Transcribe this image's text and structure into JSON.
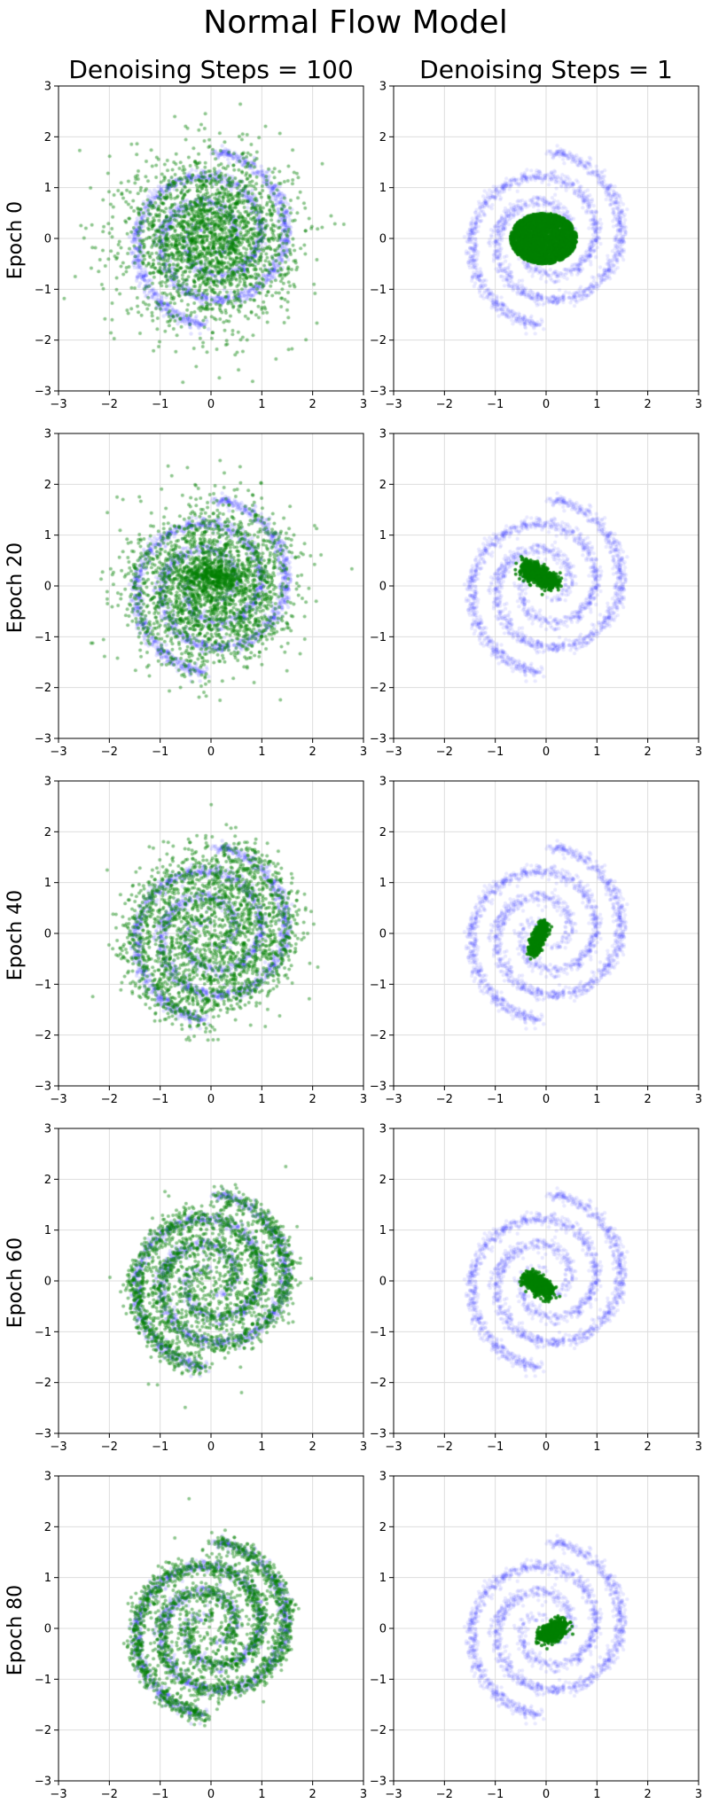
{
  "figure_title": "Normal Flow Model",
  "column_titles": [
    "Denoising Steps = 100",
    "Denoising Steps = 1"
  ],
  "row_labels": [
    "Epoch 0",
    "Epoch 20",
    "Epoch 40",
    "Epoch 60",
    "Epoch 80"
  ],
  "colors": {
    "target": "#0000ff",
    "generated": "#008000",
    "grid": "#dddddd"
  },
  "chart_data": {
    "type": "scatter",
    "grid": true,
    "xlim": [
      -3,
      3
    ],
    "ylim": [
      -3,
      3
    ],
    "xticks": [
      -3,
      -2,
      -1,
      0,
      1,
      2,
      3
    ],
    "yticks": [
      -3,
      -2,
      -1,
      0,
      1,
      2,
      3
    ],
    "target_distribution": {
      "shape": "two-arm spiral",
      "center": [
        0,
        0
      ],
      "outer_radius": 1.7,
      "point_count": 2000
    },
    "panels": [
      {
        "row": 0,
        "col": 0,
        "generated": {
          "kind": "gaussian",
          "mean": [
            0,
            0
          ],
          "std": 0.8,
          "n": 2200
        }
      },
      {
        "row": 0,
        "col": 1,
        "generated": {
          "kind": "blob",
          "center": [
            -0.05,
            0.0
          ],
          "radius": [
            0.65,
            0.5
          ],
          "n": 2600
        }
      },
      {
        "row": 1,
        "col": 0,
        "generated": {
          "kind": "gaussian+spiral",
          "mean": [
            0,
            0
          ],
          "std": 0.72,
          "spiral_fraction": 0.25,
          "n": 2200
        }
      },
      {
        "row": 1,
        "col": 1,
        "generated": {
          "kind": "streak",
          "from": [
            -0.4,
            0.35
          ],
          "to": [
            0.15,
            0.05
          ],
          "width": 0.08,
          "n": 900
        }
      },
      {
        "row": 2,
        "col": 0,
        "generated": {
          "kind": "spiral",
          "noise": 0.2,
          "spiral_fraction": 0.75,
          "n": 2200
        }
      },
      {
        "row": 2,
        "col": 1,
        "generated": {
          "kind": "streak",
          "from": [
            -0.25,
            -0.35
          ],
          "to": [
            -0.05,
            0.15
          ],
          "width": 0.06,
          "n": 700
        }
      },
      {
        "row": 3,
        "col": 0,
        "generated": {
          "kind": "spiral",
          "noise": 0.12,
          "spiral_fraction": 0.92,
          "n": 2200
        }
      },
      {
        "row": 3,
        "col": 1,
        "generated": {
          "kind": "streak",
          "from": [
            -0.35,
            0.05
          ],
          "to": [
            0.05,
            -0.2
          ],
          "width": 0.08,
          "n": 700
        }
      },
      {
        "row": 4,
        "col": 0,
        "generated": {
          "kind": "spiral",
          "noise": 0.1,
          "spiral_fraction": 0.95,
          "n": 2200
        }
      },
      {
        "row": 4,
        "col": 1,
        "generated": {
          "kind": "streak",
          "from": [
            -0.05,
            -0.15
          ],
          "to": [
            0.3,
            0.05
          ],
          "width": 0.08,
          "n": 700
        }
      }
    ]
  }
}
